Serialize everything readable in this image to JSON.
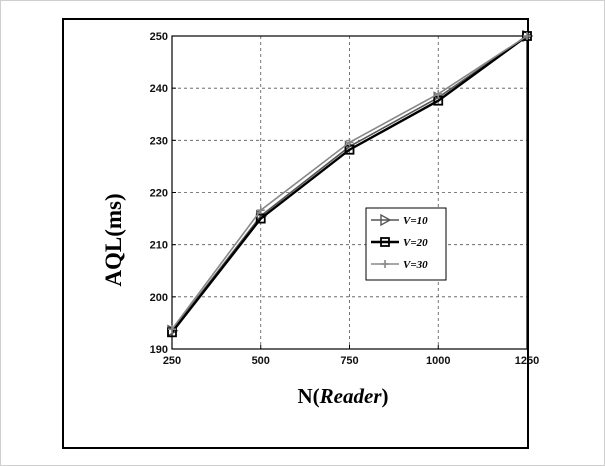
{
  "chart_data": {
    "type": "line",
    "xlabel_prefix": "N",
    "xlabel_italic": "Reader",
    "ylabel": "AQL(ms)",
    "x": [
      250,
      500,
      750,
      1000,
      1250
    ],
    "xlim": [
      250,
      1250
    ],
    "ylim": [
      190,
      250
    ],
    "xticks": [
      "250",
      "500",
      "750",
      "1000",
      "1250"
    ],
    "yticks": [
      "190",
      "200",
      "210",
      "220",
      "230",
      "240",
      "250"
    ],
    "grid": true,
    "legend_position": "center-right",
    "series": [
      {
        "name": "V=10",
        "values": [
          193.5,
          215.5,
          228.8,
          238.2,
          250.0
        ],
        "marker": "triangle-right",
        "color": "#555555"
      },
      {
        "name": "V=20",
        "values": [
          193.2,
          215.0,
          228.2,
          237.6,
          250.0
        ],
        "marker": "square",
        "color": "#000000"
      },
      {
        "name": "V=30",
        "values": [
          193.8,
          216.6,
          229.6,
          238.9,
          250.0
        ],
        "marker": "plus",
        "color": "#888888"
      }
    ]
  }
}
